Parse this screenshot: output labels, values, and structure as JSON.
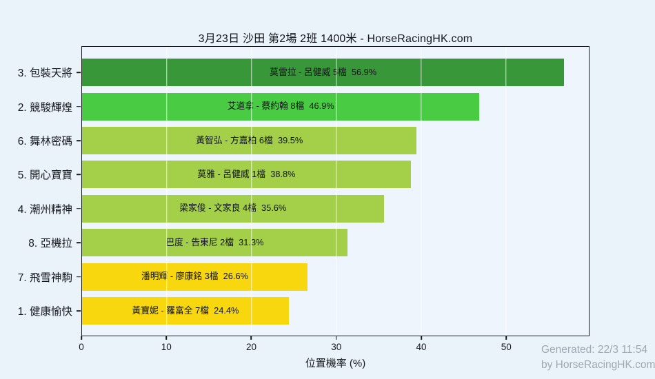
{
  "title": "3月23日  沙田  第2場  2班  1400米 - HorseRacingHK.com",
  "watermark": {
    "line1": "Generated: 22/3 11:54",
    "line2": "by HorseRacingHK.com",
    "color": "#9fa7b0"
  },
  "chart_data": {
    "type": "bar",
    "orientation": "horizontal",
    "title": "3月23日  沙田  第2場  2班  1400米 - HorseRacingHK.com",
    "xlabel": "位置機率 (%)",
    "ylabel": "",
    "xlim": [
      0,
      59.8
    ],
    "xticks": [
      0,
      10,
      20,
      30,
      40,
      50
    ],
    "grid": true,
    "gridline_color": "rgba(255,255,255,0.8)",
    "background_color": "#eaf2fa",
    "plot_background_color": "#eff5fc",
    "categories": [
      "3. 包裝天將",
      "2. 競駿輝煌",
      "6. 舞林密碼",
      "5. 開心寶寶",
      "4. 潮州精神",
      "8. 亞機拉",
      "7. 飛雪神駒",
      "1. 健康愉快"
    ],
    "values": [
      56.9,
      46.9,
      39.5,
      38.8,
      35.6,
      31.3,
      26.6,
      24.4
    ],
    "bar_labels": [
      "莫雷拉 - 呂健威 5檔  56.9%",
      "艾道拿 - 蔡約翰 8檔  46.9%",
      "黃智弘 - 方嘉柏 6檔  39.5%",
      "莫雅 - 呂健威 1檔  38.8%",
      "梁家俊 - 文家良 4檔  35.6%",
      "巴度 - 告東尼 2檔  31.3%",
      "潘明輝 - 廖康銘 3檔  26.6%",
      "黃寶妮 - 羅富全 7檔  24.4%"
    ],
    "bar_colors": [
      "#389739",
      "#49cc44",
      "#a3cf49",
      "#a3cf49",
      "#a3cf49",
      "#a3cf49",
      "#f9d70f",
      "#f9d70f"
    ]
  }
}
